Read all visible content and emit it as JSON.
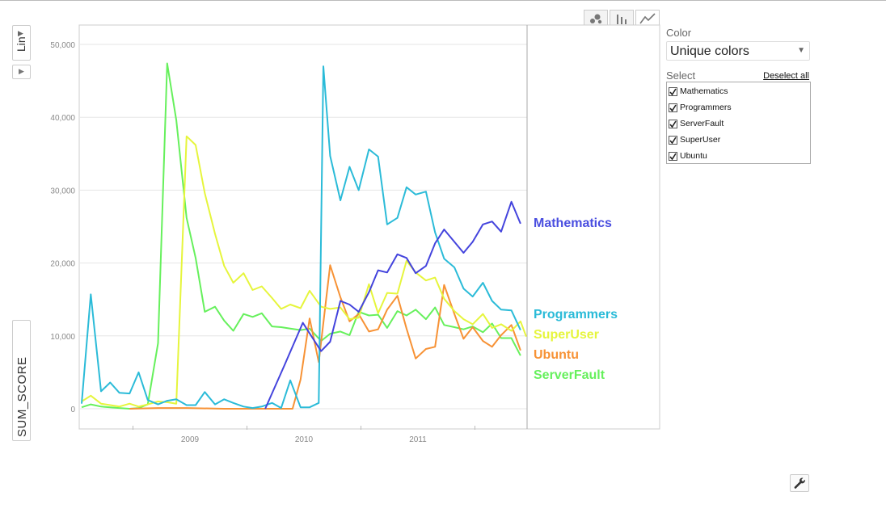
{
  "chart_data": {
    "type": "line",
    "ylabel": "SUM_SCORE",
    "xlabel": "",
    "ylim": [
      0,
      51000
    ],
    "xlim": [
      2008.0,
      2012.0
    ],
    "yticks": [
      0,
      10000,
      20000,
      30000,
      40000,
      50000
    ],
    "ytick_labels": [
      "0",
      "10,000",
      "20,000",
      "30,000",
      "40,000",
      "50,000"
    ],
    "xtick_labels": [
      "2009",
      "2010",
      "2011"
    ],
    "xtick_values": [
      2009,
      2010,
      2011
    ],
    "grid": true,
    "legend": "end-of-line labels",
    "series": [
      {
        "name": "Mathematics",
        "color": "#4444dd",
        "points": [
          [
            2009.66,
            0
          ],
          [
            2009.83,
            6000
          ],
          [
            2009.99,
            11800
          ],
          [
            2010.15,
            7900
          ],
          [
            2010.23,
            9200
          ],
          [
            2010.32,
            14800
          ],
          [
            2010.4,
            14300
          ],
          [
            2010.48,
            13300
          ],
          [
            2010.57,
            16000
          ],
          [
            2010.65,
            19000
          ],
          [
            2010.73,
            18700
          ],
          [
            2010.82,
            21200
          ],
          [
            2010.9,
            20700
          ],
          [
            2010.98,
            18600
          ],
          [
            2011.07,
            19600
          ],
          [
            2011.15,
            22700
          ],
          [
            2011.23,
            24600
          ],
          [
            2011.32,
            22900
          ],
          [
            2011.4,
            21400
          ],
          [
            2011.48,
            22900
          ],
          [
            2011.57,
            25300
          ],
          [
            2011.65,
            25700
          ],
          [
            2011.73,
            24300
          ],
          [
            2011.82,
            28400
          ],
          [
            2011.9,
            25400
          ]
        ]
      },
      {
        "name": "Programmers",
        "color": "#2bbbd8",
        "points": [
          [
            2008.05,
            700
          ],
          [
            2008.13,
            15700
          ],
          [
            2008.22,
            2400
          ],
          [
            2008.3,
            3600
          ],
          [
            2008.38,
            2200
          ],
          [
            2008.47,
            2100
          ],
          [
            2008.55,
            5000
          ],
          [
            2008.63,
            1200
          ],
          [
            2008.72,
            600
          ],
          [
            2008.8,
            1100
          ],
          [
            2008.88,
            1300
          ],
          [
            2008.97,
            500
          ],
          [
            2009.05,
            500
          ],
          [
            2009.13,
            2300
          ],
          [
            2009.22,
            600
          ],
          [
            2009.3,
            1300
          ],
          [
            2009.38,
            800
          ],
          [
            2009.47,
            300
          ],
          [
            2009.55,
            100
          ],
          [
            2009.63,
            300
          ],
          [
            2009.72,
            800
          ],
          [
            2009.8,
            100
          ],
          [
            2009.88,
            3900
          ],
          [
            2009.97,
            200
          ],
          [
            2010.05,
            200
          ],
          [
            2010.13,
            800
          ],
          [
            2010.17,
            47000
          ],
          [
            2010.23,
            34700
          ],
          [
            2010.32,
            28600
          ],
          [
            2010.4,
            33200
          ],
          [
            2010.48,
            30000
          ],
          [
            2010.57,
            35600
          ],
          [
            2010.65,
            34600
          ],
          [
            2010.73,
            25300
          ],
          [
            2010.82,
            26200
          ],
          [
            2010.9,
            30400
          ],
          [
            2010.98,
            29400
          ],
          [
            2011.07,
            29800
          ],
          [
            2011.15,
            24200
          ],
          [
            2011.23,
            20600
          ],
          [
            2011.32,
            19400
          ],
          [
            2011.4,
            16500
          ],
          [
            2011.48,
            15400
          ],
          [
            2011.57,
            17300
          ],
          [
            2011.65,
            14800
          ],
          [
            2011.73,
            13600
          ],
          [
            2011.82,
            13500
          ],
          [
            2011.9,
            10800
          ]
        ]
      },
      {
        "name": "SuperUser",
        "color": "#e6f53c",
        "points": [
          [
            2008.05,
            1000
          ],
          [
            2008.13,
            1800
          ],
          [
            2008.22,
            700
          ],
          [
            2008.3,
            500
          ],
          [
            2008.38,
            300
          ],
          [
            2008.47,
            700
          ],
          [
            2008.55,
            300
          ],
          [
            2008.63,
            600
          ],
          [
            2008.72,
            1000
          ],
          [
            2008.8,
            900
          ],
          [
            2008.88,
            700
          ],
          [
            2008.97,
            37400
          ],
          [
            2009.05,
            36200
          ],
          [
            2009.13,
            29600
          ],
          [
            2009.22,
            24000
          ],
          [
            2009.3,
            19600
          ],
          [
            2009.38,
            17300
          ],
          [
            2009.47,
            18600
          ],
          [
            2009.55,
            16300
          ],
          [
            2009.63,
            16800
          ],
          [
            2009.72,
            15200
          ],
          [
            2009.8,
            13700
          ],
          [
            2009.88,
            14300
          ],
          [
            2009.97,
            13800
          ],
          [
            2010.05,
            16200
          ],
          [
            2010.15,
            14000
          ],
          [
            2010.23,
            13700
          ],
          [
            2010.32,
            13900
          ],
          [
            2010.4,
            12300
          ],
          [
            2010.48,
            12500
          ],
          [
            2010.57,
            17100
          ],
          [
            2010.65,
            13100
          ],
          [
            2010.73,
            15900
          ],
          [
            2010.82,
            15800
          ],
          [
            2010.9,
            20300
          ],
          [
            2010.98,
            18700
          ],
          [
            2011.07,
            17600
          ],
          [
            2011.15,
            18000
          ],
          [
            2011.23,
            15100
          ],
          [
            2011.32,
            13400
          ],
          [
            2011.4,
            12300
          ],
          [
            2011.48,
            11600
          ],
          [
            2011.57,
            13000
          ],
          [
            2011.65,
            11100
          ],
          [
            2011.73,
            11600
          ],
          [
            2011.82,
            10700
          ],
          [
            2011.9,
            12000
          ],
          [
            2011.95,
            9900
          ]
        ]
      },
      {
        "name": "Ubuntu",
        "color": "#f79235",
        "points": [
          [
            2008.47,
            0
          ],
          [
            2008.72,
            100
          ],
          [
            2008.97,
            100
          ],
          [
            2009.3,
            0
          ],
          [
            2009.55,
            0
          ],
          [
            2009.8,
            0
          ],
          [
            2009.9,
            0
          ],
          [
            2009.97,
            4000
          ],
          [
            2010.05,
            12400
          ],
          [
            2010.13,
            6400
          ],
          [
            2010.23,
            19700
          ],
          [
            2010.32,
            15300
          ],
          [
            2010.4,
            12000
          ],
          [
            2010.48,
            13000
          ],
          [
            2010.57,
            10600
          ],
          [
            2010.65,
            10900
          ],
          [
            2010.73,
            13600
          ],
          [
            2010.82,
            15500
          ],
          [
            2010.9,
            11000
          ],
          [
            2010.98,
            6900
          ],
          [
            2011.07,
            8200
          ],
          [
            2011.15,
            8500
          ],
          [
            2011.23,
            17000
          ],
          [
            2011.32,
            13000
          ],
          [
            2011.4,
            9600
          ],
          [
            2011.48,
            11200
          ],
          [
            2011.57,
            9300
          ],
          [
            2011.65,
            8500
          ],
          [
            2011.73,
            10100
          ],
          [
            2011.82,
            11500
          ],
          [
            2011.9,
            8000
          ]
        ]
      },
      {
        "name": "ServerFault",
        "color": "#66f05c",
        "points": [
          [
            2008.05,
            200
          ],
          [
            2008.13,
            600
          ],
          [
            2008.22,
            300
          ],
          [
            2008.3,
            200
          ],
          [
            2008.38,
            100
          ],
          [
            2008.47,
            0
          ],
          [
            2008.55,
            100
          ],
          [
            2008.63,
            600
          ],
          [
            2008.72,
            9000
          ],
          [
            2008.8,
            47400
          ],
          [
            2008.88,
            39600
          ],
          [
            2008.97,
            26200
          ],
          [
            2009.05,
            20700
          ],
          [
            2009.13,
            13300
          ],
          [
            2009.22,
            14000
          ],
          [
            2009.3,
            12100
          ],
          [
            2009.38,
            10700
          ],
          [
            2009.47,
            13000
          ],
          [
            2009.55,
            12600
          ],
          [
            2009.63,
            13100
          ],
          [
            2009.72,
            11300
          ],
          [
            2009.8,
            11200
          ],
          [
            2009.88,
            11000
          ],
          [
            2009.97,
            10800
          ],
          [
            2010.05,
            11000
          ],
          [
            2010.15,
            9300
          ],
          [
            2010.23,
            10300
          ],
          [
            2010.32,
            10600
          ],
          [
            2010.4,
            10100
          ],
          [
            2010.48,
            13300
          ],
          [
            2010.57,
            12800
          ],
          [
            2010.65,
            12900
          ],
          [
            2010.73,
            11100
          ],
          [
            2010.82,
            13400
          ],
          [
            2010.9,
            12800
          ],
          [
            2010.98,
            13600
          ],
          [
            2011.07,
            12300
          ],
          [
            2011.15,
            13900
          ],
          [
            2011.23,
            11500
          ],
          [
            2011.32,
            11200
          ],
          [
            2011.4,
            10900
          ],
          [
            2011.48,
            11300
          ],
          [
            2011.57,
            10500
          ],
          [
            2011.65,
            11700
          ],
          [
            2011.73,
            9700
          ],
          [
            2011.82,
            9700
          ],
          [
            2011.9,
            7300
          ]
        ]
      }
    ],
    "end_labels": [
      {
        "name": "Mathematics",
        "color": "#4a4ee0"
      },
      {
        "name": "Programmers",
        "color": "#2bbbd8"
      },
      {
        "name": "SuperUser",
        "color": "#e6f53c"
      },
      {
        "name": "Ubuntu",
        "color": "#f79235"
      },
      {
        "name": "ServerFault",
        "color": "#66f05c"
      }
    ]
  },
  "controls": {
    "y_scale_button": "Lin",
    "color_label": "Color",
    "color_value": "Unique colors",
    "select_label": "Select",
    "deselect_all": "Deselect all",
    "items": [
      "Mathematics",
      "Programmers",
      "ServerFault",
      "SuperUser",
      "Ubuntu"
    ]
  },
  "icons": {
    "view_tabs": [
      "bubble-chart-icon",
      "bar-chart-icon",
      "line-chart-icon"
    ],
    "settings": "wrench-icon"
  }
}
